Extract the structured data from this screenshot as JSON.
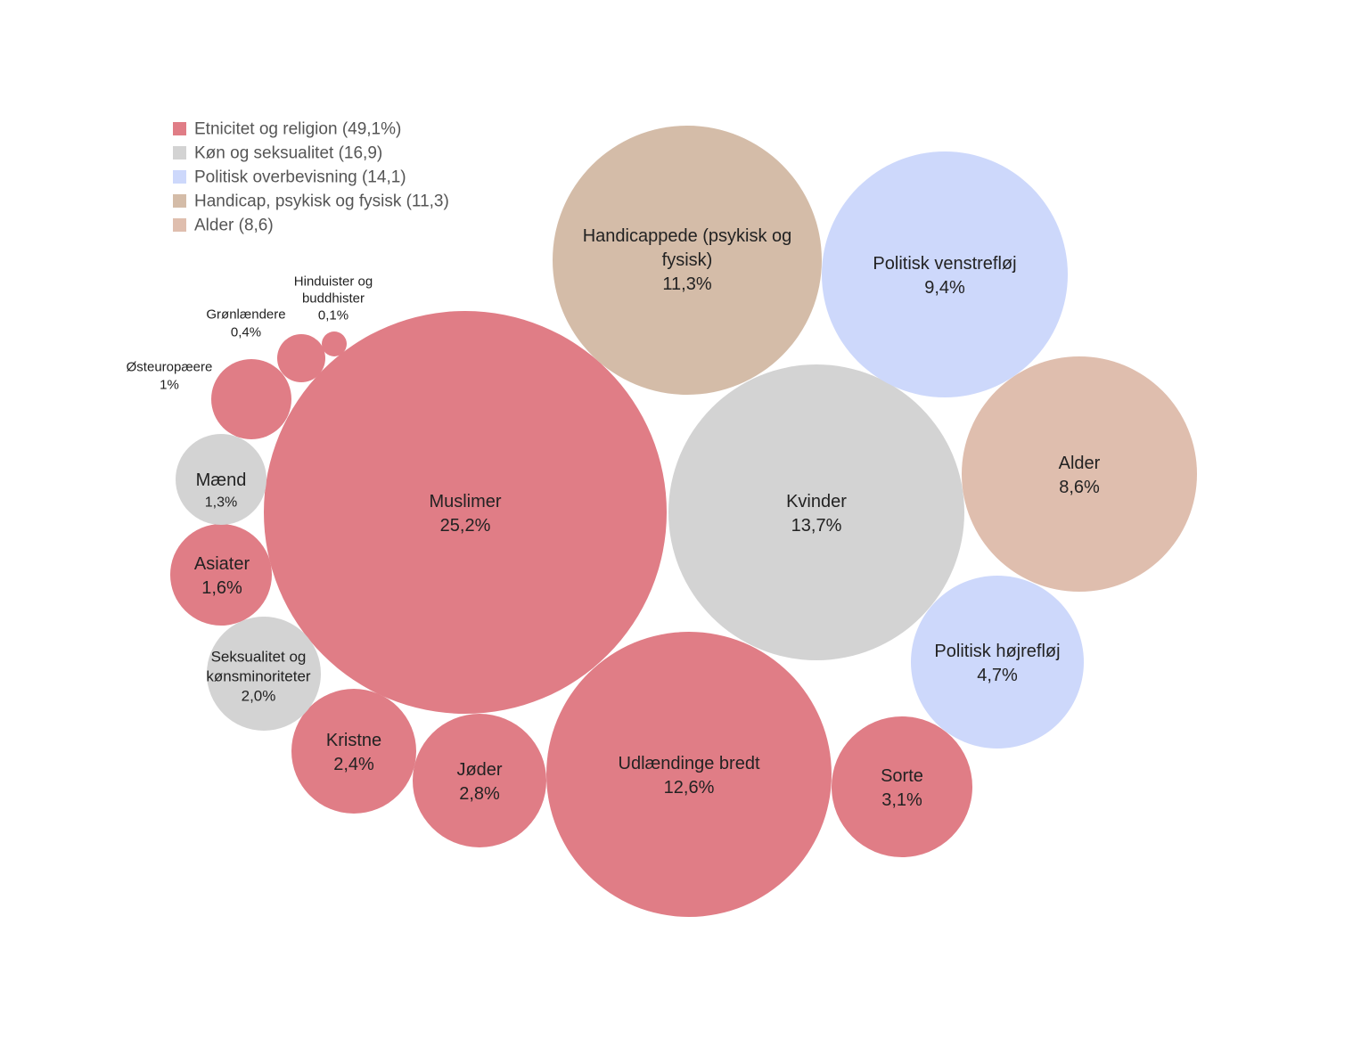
{
  "legend": [
    {
      "label": "Etnicitet og religion (49,1%)",
      "color": "#e07d86"
    },
    {
      "label": "Køn og seksualitet (16,9)",
      "color": "#d3d3d3"
    },
    {
      "label": "Politisk overbevisning (14,1)",
      "color": "#cdd8fb"
    },
    {
      "label": "Handicap, psykisk og fysisk (11,3)",
      "color": "#d4bca8"
    },
    {
      "label": "Alder (8,6)",
      "color": "#dfbeae"
    }
  ],
  "chart_data": {
    "type": "bubble",
    "value_unit": "%",
    "bubbles": [
      {
        "name_lines": [
          "Muslimer"
        ],
        "value_text": "25,2%",
        "value": 25.2,
        "group": "Etnicitet og religion"
      },
      {
        "name_lines": [
          "Kvinder"
        ],
        "value_text": "13,7%",
        "value": 13.7,
        "group": "Køn og seksualitet"
      },
      {
        "name_lines": [
          "Udlændinge bredt"
        ],
        "value_text": "12,6%",
        "value": 12.6,
        "group": "Etnicitet og religion"
      },
      {
        "name_lines": [
          "Handicappede (psykisk og",
          "fysisk)"
        ],
        "value_text": "11,3%",
        "value": 11.3,
        "group": "Handicap, psykisk og fysisk"
      },
      {
        "name_lines": [
          "Politisk venstrefløj"
        ],
        "value_text": "9,4%",
        "value": 9.4,
        "group": "Politisk overbevisning"
      },
      {
        "name_lines": [
          "Alder"
        ],
        "value_text": "8,6%",
        "value": 8.6,
        "group": "Alder"
      },
      {
        "name_lines": [
          "Politisk højrefløj"
        ],
        "value_text": "4,7%",
        "value": 4.7,
        "group": "Politisk overbevisning"
      },
      {
        "name_lines": [
          "Sorte"
        ],
        "value_text": "3,1%",
        "value": 3.1,
        "group": "Etnicitet og religion"
      },
      {
        "name_lines": [
          "Jøder"
        ],
        "value_text": "2,8%",
        "value": 2.8,
        "group": "Etnicitet og religion"
      },
      {
        "name_lines": [
          "Kristne"
        ],
        "value_text": "2,4%",
        "value": 2.4,
        "group": "Etnicitet og religion"
      },
      {
        "name_lines": [
          "Seksualitet og",
          "kønsminoriteter"
        ],
        "value_text": "2,0%",
        "value": 2.0,
        "group": "Køn og seksualitet"
      },
      {
        "name_lines": [
          "Asiater"
        ],
        "value_text": "1,6%",
        "value": 1.6,
        "group": "Etnicitet og religion"
      },
      {
        "name_lines": [
          "Mænd"
        ],
        "value_text": "1,3%",
        "value": 1.3,
        "group": "Køn og seksualitet"
      },
      {
        "name_lines": [
          "Østeuropæere"
        ],
        "value_text": "1%",
        "value": 1.0,
        "group": "Etnicitet og religion"
      },
      {
        "name_lines": [
          "Grønlændere"
        ],
        "value_text": "0,4%",
        "value": 0.4,
        "group": "Etnicitet og religion"
      },
      {
        "name_lines": [
          "Hinduister og",
          "buddhister"
        ],
        "value_text": "0,1%",
        "value": 0.1,
        "group": "Etnicitet og religion"
      }
    ]
  }
}
